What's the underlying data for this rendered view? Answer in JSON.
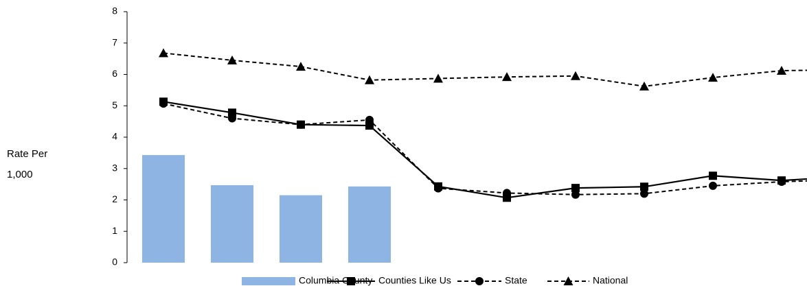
{
  "chart_data": {
    "type": "combo",
    "y_axis_label": "Rate Per 1,000",
    "categories": [
      null,
      null,
      null,
      null,
      null,
      null,
      null,
      null,
      null,
      null,
      null
    ],
    "series": [
      {
        "name": "Columbia County",
        "type": "bar",
        "color": "#8eb4e3",
        "values": [
          3.43,
          2.47,
          2.15,
          2.43,
          null,
          null,
          null,
          null,
          null,
          null,
          null
        ]
      },
      {
        "name": "Counties Like Us",
        "type": "line",
        "color": "#000000",
        "dash": false,
        "marker": "square",
        "values": [
          5.13,
          4.78,
          4.4,
          4.37,
          2.43,
          2.07,
          2.38,
          2.42,
          2.77,
          2.62,
          2.75
        ]
      },
      {
        "name": "State",
        "type": "line",
        "color": "#000000",
        "dash": true,
        "marker": "circle",
        "values": [
          5.07,
          4.6,
          4.4,
          4.55,
          2.37,
          2.22,
          2.17,
          2.2,
          2.45,
          2.58,
          2.65
        ]
      },
      {
        "name": "National",
        "type": "line",
        "color": "#000000",
        "dash": true,
        "marker": "triangle",
        "values": [
          6.68,
          6.45,
          6.25,
          5.82,
          5.87,
          5.92,
          5.95,
          5.62,
          5.9,
          6.12,
          6.15
        ]
      }
    ],
    "ylim": [
      0,
      8
    ],
    "yticks": [
      0,
      1,
      2,
      3,
      4,
      5,
      6,
      7,
      8
    ],
    "grid": false,
    "legend": "bottom"
  }
}
